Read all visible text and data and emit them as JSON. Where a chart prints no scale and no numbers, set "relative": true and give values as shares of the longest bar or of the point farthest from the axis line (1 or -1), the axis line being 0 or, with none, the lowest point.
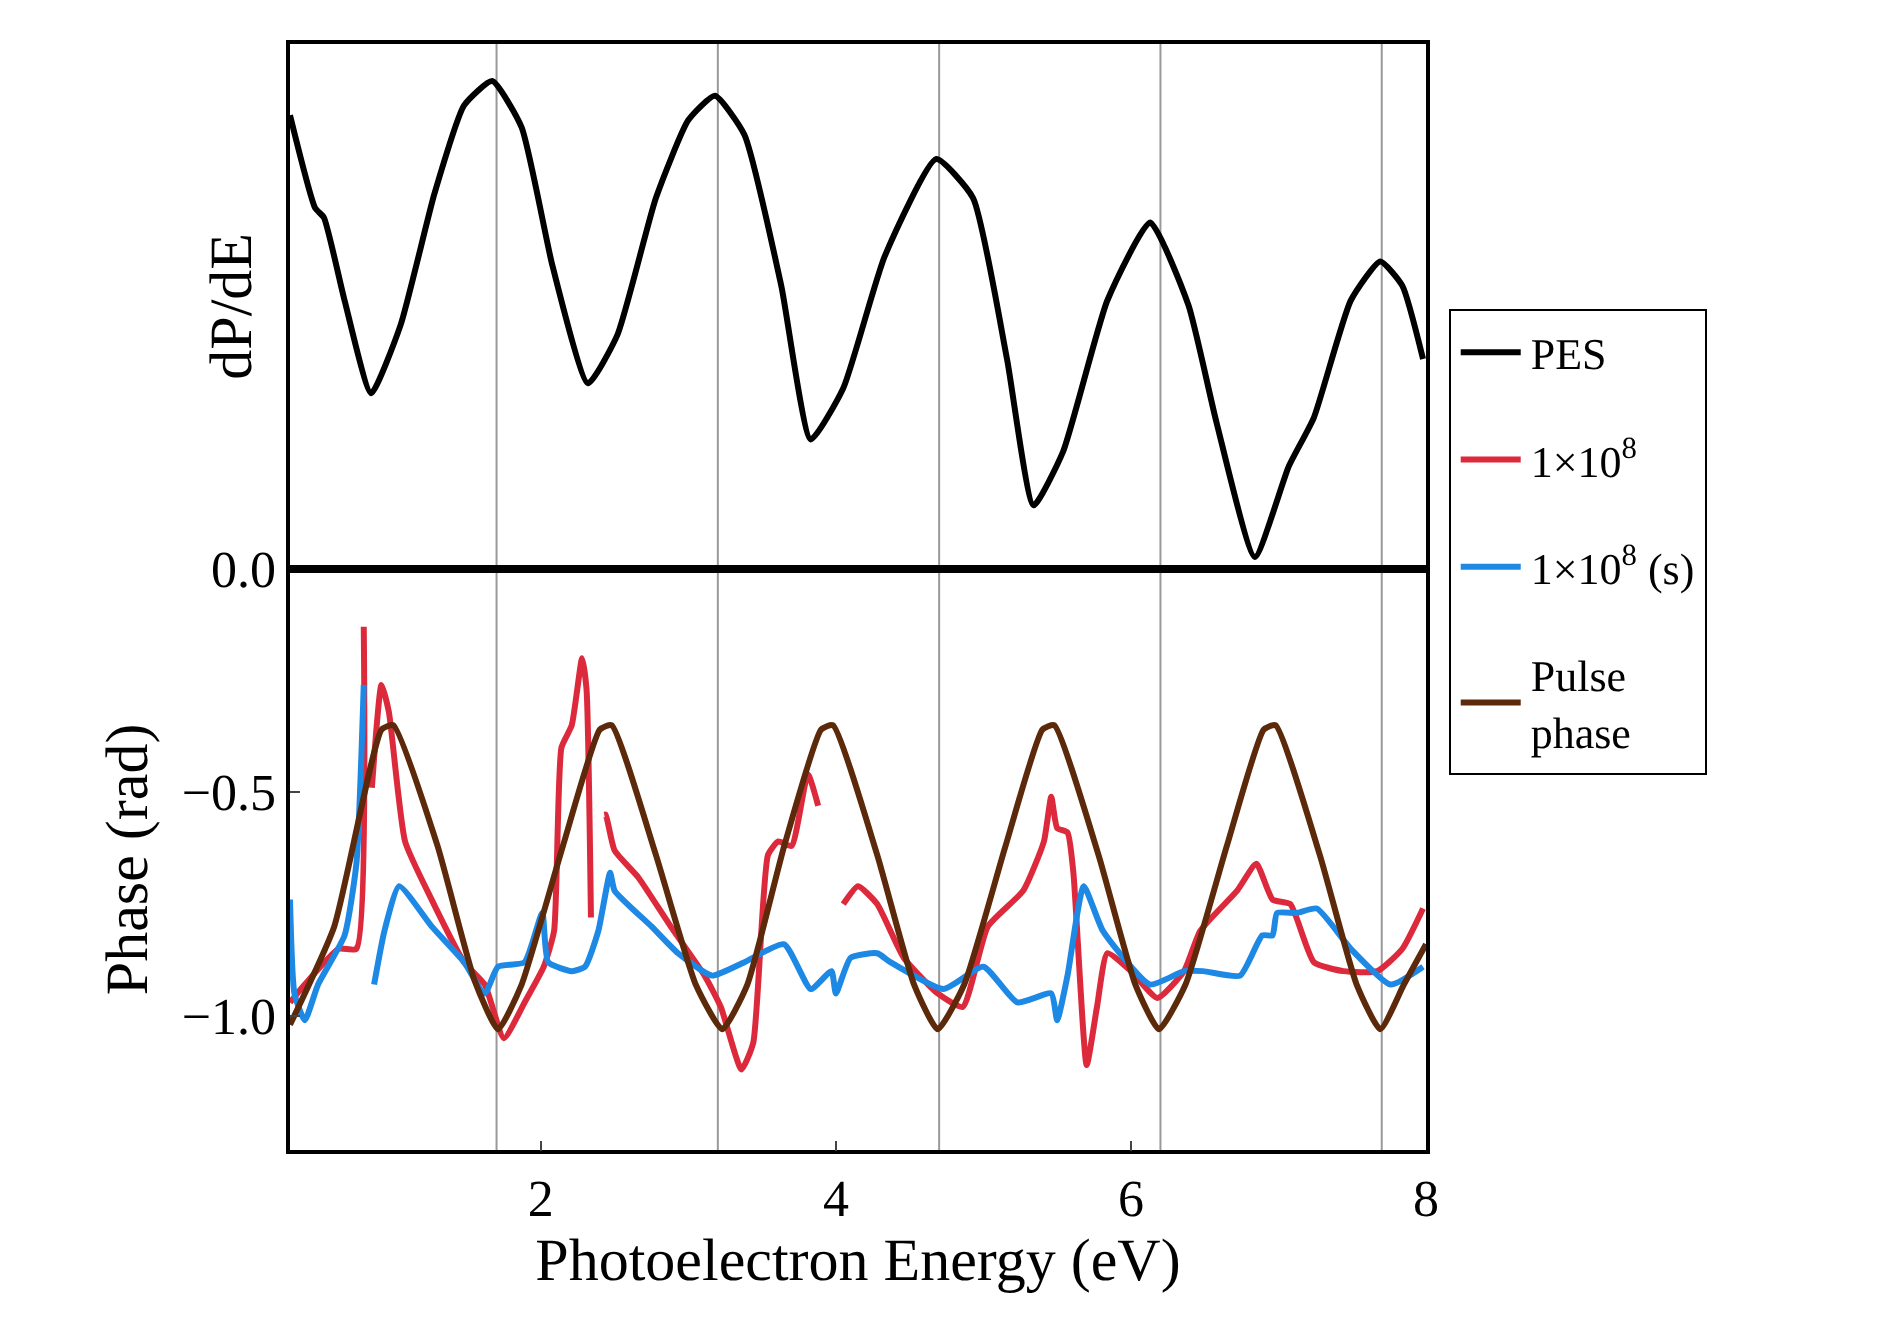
{
  "chart_data": [
    {
      "type": "line",
      "ylabel": "dP/dE",
      "relative": true,
      "xlim": [
        0.3,
        8.0
      ],
      "legend": "right",
      "ref_lines": [
        {
          "axis": "x",
          "value": 1.7,
          "color": "#999999"
        },
        {
          "axis": "x",
          "value": 3.2,
          "color": "#999999"
        },
        {
          "axis": "x",
          "value": 4.7,
          "color": "#999999"
        },
        {
          "axis": "x",
          "value": 6.2,
          "color": "#999999"
        },
        {
          "axis": "x",
          "value": 7.7,
          "color": "#999999"
        }
      ],
      "series": [
        {
          "name": "PES",
          "color": "#000000",
          "x": [
            0.3,
            0.47,
            0.53,
            0.67,
            0.85,
            1.05,
            1.28,
            1.48,
            1.67,
            1.87,
            2.08,
            2.32,
            2.52,
            2.78,
            3.0,
            3.18,
            3.38,
            3.63,
            3.83,
            4.05,
            4.33,
            4.68,
            4.93,
            5.16,
            5.34,
            5.54,
            5.84,
            6.13,
            6.39,
            6.58,
            6.84,
            7.07,
            7.24,
            7.49,
            7.69,
            7.84,
            7.98
          ],
          "values": [
            0.93,
            0.74,
            0.72,
            0.55,
            0.36,
            0.5,
            0.77,
            0.95,
            1.0,
            0.905,
            0.62,
            0.38,
            0.48,
            0.76,
            0.92,
            0.97,
            0.89,
            0.58,
            0.265,
            0.37,
            0.64,
            0.84,
            0.76,
            0.43,
            0.13,
            0.24,
            0.55,
            0.71,
            0.54,
            0.3,
            0.024,
            0.21,
            0.31,
            0.55,
            0.63,
            0.58,
            0.43
          ]
        }
      ]
    },
    {
      "type": "line",
      "xlabel": "Photoelectron Energy (eV)",
      "ylabel": "Phase (rad)",
      "xlim": [
        0.3,
        8.0
      ],
      "xticks": [
        2,
        4,
        6,
        8
      ],
      "ylim": [
        -1.3,
        0.0
      ],
      "yticks": [
        {
          "value": 0.0,
          "label": "0.0"
        },
        {
          "value": -0.5,
          "label": "−0.5"
        },
        {
          "value": -1.0,
          "label": "−1.0"
        }
      ],
      "legend": "right",
      "ref_lines": [
        {
          "axis": "x",
          "value": 1.7,
          "color": "#999999"
        },
        {
          "axis": "x",
          "value": 3.2,
          "color": "#999999"
        },
        {
          "axis": "x",
          "value": 4.7,
          "color": "#999999"
        },
        {
          "axis": "x",
          "value": 6.2,
          "color": "#999999"
        },
        {
          "axis": "x",
          "value": 7.7,
          "color": "#999999"
        }
      ],
      "series": [
        {
          "name": "1×10$^{8}$",
          "color": "#dc2a3c",
          "x": [
            0.3,
            0.4,
            0.63,
            0.75,
            0.8,
            0.82,
            0.855,
            0.92,
            0.97,
            1.08,
            1.26,
            1.48,
            1.62,
            1.75,
            1.89,
            2.02,
            2.09,
            2.14,
            2.21,
            2.28,
            2.31,
            2.34,
            2.36,
            2.39,
            2.43,
            2.44,
            2.5,
            2.66,
            2.88,
            3.11,
            3.22,
            3.36,
            3.44,
            3.54,
            3.61,
            3.7,
            3.81,
            3.88,
            3.92,
            3.98,
            4.05,
            4.15,
            4.28,
            4.46,
            4.69,
            4.86,
            5.03,
            5.27,
            5.41,
            5.46,
            5.5,
            5.57,
            5.61,
            5.7,
            5.77,
            5.84,
            6.0,
            6.18,
            6.36,
            6.47,
            6.72,
            6.85,
            6.96,
            7.08,
            7.24,
            7.44,
            7.67,
            7.84,
            7.98
          ],
          "values": [
            -0.97,
            -0.93,
            -0.85,
            -0.85,
            -0.13,
            null,
            -0.49,
            -0.26,
            -0.32,
            -0.61,
            -0.74,
            -0.88,
            -0.93,
            -1.05,
            -0.97,
            -0.89,
            -0.81,
            -0.4,
            -0.35,
            -0.2,
            -0.27,
            -0.78,
            null,
            null,
            -0.55,
            -0.55,
            -0.63,
            -0.69,
            -0.8,
            -0.91,
            -0.98,
            -1.12,
            -1.06,
            -0.64,
            -0.61,
            -0.62,
            -0.46,
            -0.53,
            null,
            null,
            -0.75,
            -0.71,
            -0.75,
            -0.87,
            -0.95,
            -0.98,
            -0.8,
            -0.72,
            -0.61,
            -0.51,
            -0.58,
            -0.59,
            -0.68,
            -1.11,
            -0.98,
            -0.86,
            -0.9,
            -0.96,
            -0.9,
            -0.81,
            -0.72,
            -0.66,
            -0.74,
            -0.75,
            -0.88,
            -0.9,
            -0.9,
            -0.85,
            -0.76
          ]
        },
        {
          "name": "1×10$^{8}$ (s)",
          "color": "#1e88e5",
          "x": [
            0.3,
            0.33,
            0.4,
            0.49,
            0.67,
            0.75,
            0.8,
            0.81,
            0.85,
            0.87,
            0.94,
            1.04,
            1.26,
            1.48,
            1.62,
            1.71,
            1.89,
            2.01,
            2.05,
            2.21,
            2.3,
            2.39,
            2.47,
            2.5,
            2.75,
            2.93,
            3.16,
            3.38,
            3.65,
            3.83,
            3.97,
            4.0,
            4.1,
            4.28,
            4.37,
            4.73,
            5.0,
            5.23,
            5.46,
            5.5,
            5.57,
            5.68,
            5.81,
            6.13,
            6.36,
            6.49,
            6.74,
            6.89,
            6.96,
            6.99,
            7.12,
            7.26,
            7.49,
            7.76,
            7.98
          ],
          "values": [
            -0.74,
            -0.95,
            -1.01,
            -0.93,
            -0.82,
            -0.66,
            -0.26,
            null,
            null,
            -0.93,
            -0.81,
            -0.71,
            -0.8,
            -0.88,
            -0.95,
            -0.89,
            -0.88,
            -0.77,
            -0.88,
            -0.9,
            -0.89,
            -0.81,
            -0.68,
            -0.72,
            -0.8,
            -0.86,
            -0.91,
            -0.88,
            -0.84,
            -0.94,
            -0.9,
            -0.95,
            -0.87,
            -0.86,
            -0.88,
            -0.94,
            -0.89,
            -0.97,
            -0.95,
            -1.01,
            -0.91,
            -0.71,
            -0.81,
            -0.93,
            -0.9,
            -0.9,
            -0.91,
            -0.82,
            -0.82,
            -0.77,
            -0.77,
            -0.76,
            -0.85,
            -0.93,
            -0.89
          ]
        },
        {
          "name": "Pulse\nphase",
          "color": "#5c2a0a",
          "x": [
            0.3,
            0.6,
            0.92,
            1.0,
            1.3,
            1.55,
            1.71,
            1.87,
            2.15,
            2.4,
            2.48,
            2.78,
            3.05,
            3.23,
            3.4,
            3.65,
            3.9,
            3.98,
            4.28,
            4.53,
            4.69,
            4.87,
            5.15,
            5.4,
            5.48,
            5.78,
            6.03,
            6.19,
            6.37,
            6.65,
            6.9,
            6.98,
            7.28,
            7.53,
            7.69,
            7.85,
            8.0
          ],
          "values": [
            -1.02,
            -0.8,
            -0.36,
            -0.35,
            -0.62,
            -0.92,
            -1.03,
            -0.93,
            -0.62,
            -0.36,
            -0.35,
            -0.64,
            -0.93,
            -1.03,
            -0.93,
            -0.62,
            -0.36,
            -0.35,
            -0.64,
            -0.93,
            -1.03,
            -0.93,
            -0.62,
            -0.36,
            -0.35,
            -0.64,
            -0.93,
            -1.03,
            -0.93,
            -0.62,
            -0.36,
            -0.35,
            -0.64,
            -0.93,
            -1.03,
            -0.93,
            -0.84
          ]
        }
      ]
    }
  ]
}
